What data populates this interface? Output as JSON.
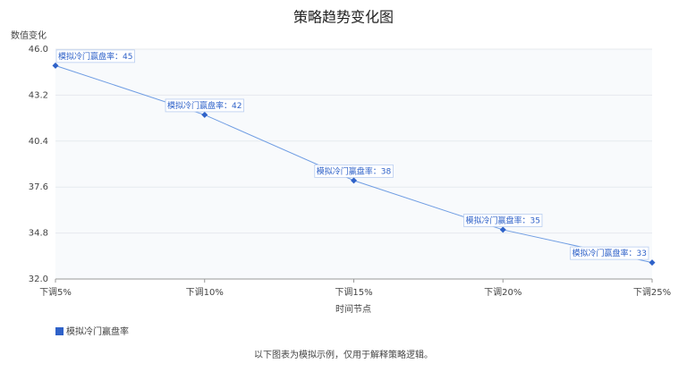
{
  "chart_data": {
    "type": "line",
    "title": "策略趋势变化图",
    "y_label": "数值变化",
    "x_label": "时间节点",
    "categories": [
      "下调5%",
      "下调10%",
      "下调15%",
      "下调20%",
      "下调25%"
    ],
    "series": [
      {
        "name": "模拟冷门赢盘率",
        "color": "#2f62c9",
        "values": [
          45,
          42,
          38,
          35,
          33
        ],
        "value_labels": [
          "模拟冷门赢盘率：45",
          "模拟冷门赢盘率：42",
          "模拟冷门赢盘率：38",
          "模拟冷门赢盘率：35",
          "模拟冷门赢盘率：33"
        ]
      }
    ],
    "ylim": [
      32,
      46
    ],
    "yticks": [
      {
        "value": 32,
        "label": "32.0"
      },
      34.8,
      37.6,
      40.4,
      43.2,
      {
        "value": 46,
        "label": "46.0"
      }
    ],
    "grid": true,
    "footnote": "以下图表为模拟示例，仅用于解释策略逻辑。"
  }
}
